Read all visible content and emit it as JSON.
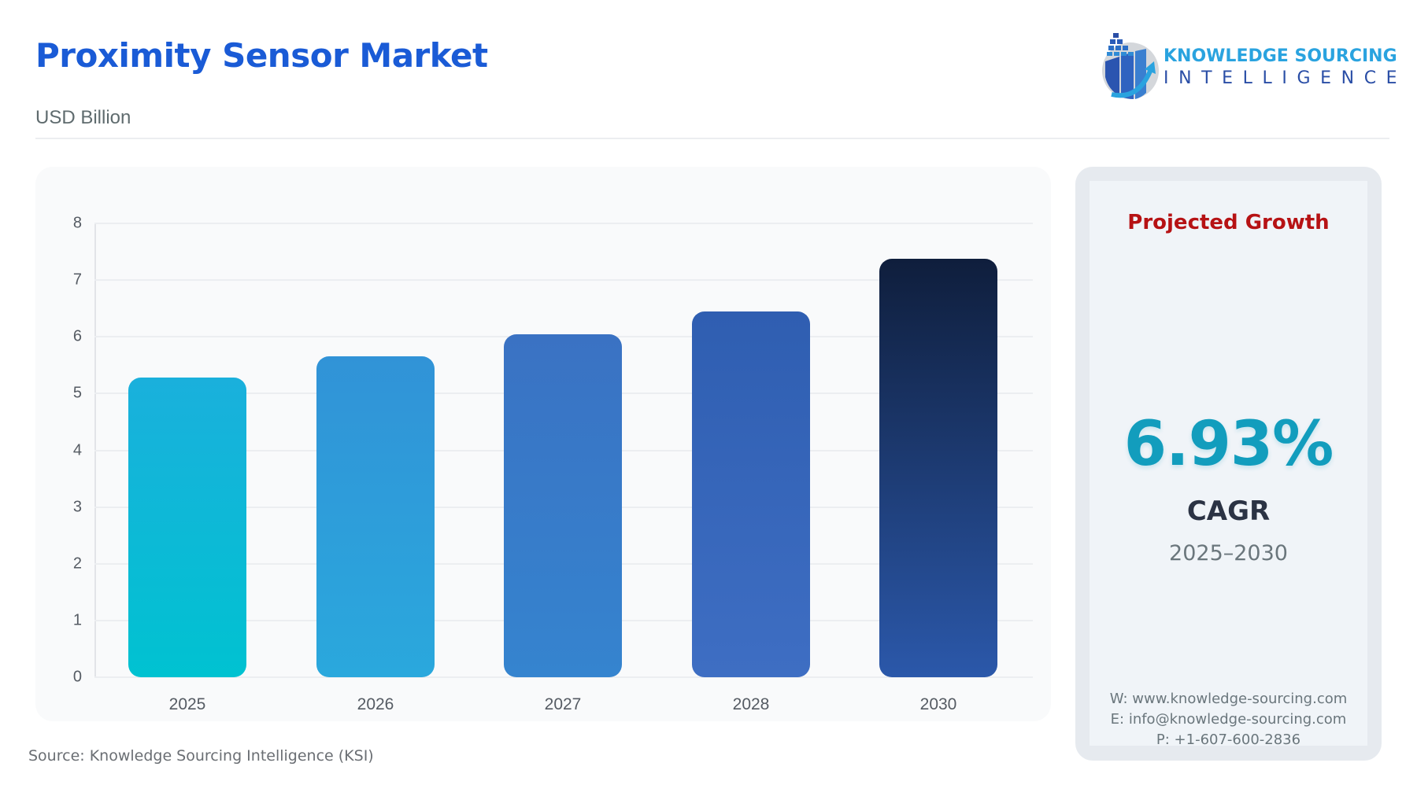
{
  "header": {
    "title": "Proximity Sensor Market",
    "unit": "USD Billion"
  },
  "logo": {
    "line1": "KNOWLEDGE SOURCING",
    "line2": "INTELLIGENCE",
    "icon": "bar-chart-globe-arrow-icon"
  },
  "source": "Source: Knowledge Sourcing Intelligence (KSI)",
  "side_panel": {
    "title": "Projected Growth",
    "cagr_value": "6.93%",
    "cagr_label": "CAGR",
    "cagr_range": "2025–2030",
    "contact": {
      "web": "W: www.knowledge-sourcing.com",
      "email": "E: info@knowledge-sourcing.com",
      "phone": "P: +1-607-600-2836"
    }
  },
  "colors": {
    "title": "#1a5bd6",
    "projected_growth": "#b61214",
    "cagr": "#129dbd",
    "bars": [
      [
        "#00c2d1",
        "#1ab0dc"
      ],
      [
        "#2aa8dd",
        "#3193d7"
      ],
      [
        "#3584cf",
        "#3a72c3"
      ],
      [
        "#3e6ec3",
        "#2f5eb1"
      ],
      [
        "#2b58aa",
        "#0f1e3c"
      ]
    ]
  },
  "chart_data": {
    "type": "bar",
    "title": "Proximity Sensor Market",
    "subtitle": "USD Billion",
    "xlabel": "",
    "ylabel": "USD Billion",
    "categories": [
      "2025",
      "2026",
      "2027",
      "2028",
      "2030"
    ],
    "values": [
      5.28,
      5.66,
      6.05,
      6.45,
      7.38
    ],
    "ylim": [
      0,
      8
    ],
    "yticks": [
      "0",
      "1",
      "2",
      "3",
      "4",
      "5",
      "6",
      "7",
      "8"
    ],
    "grid": true,
    "legend": null,
    "annotation": "6.93% CAGR 2025–2030"
  }
}
